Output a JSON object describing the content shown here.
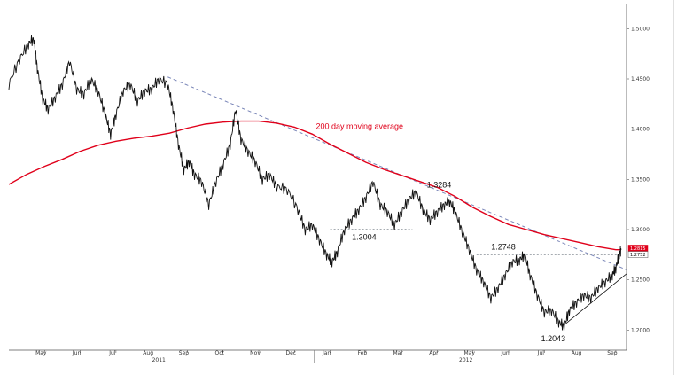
{
  "chart_data": {
    "type": "line",
    "title": "",
    "xlabel": "",
    "ylabel": "",
    "ylim": [
      1.18,
      1.525
    ],
    "y_ticks": [
      {
        "value": 1.5,
        "label": "1.5000"
      },
      {
        "value": 1.45,
        "label": "1.4500"
      },
      {
        "value": 1.4,
        "label": "1.4000"
      },
      {
        "value": 1.35,
        "label": "1.3500"
      },
      {
        "value": 1.3,
        "label": "1.3000"
      },
      {
        "value": 1.25,
        "label": "1.2500"
      },
      {
        "value": 1.2,
        "label": "1.2000"
      }
    ],
    "x_months": [
      {
        "t": 1.0,
        "label": "May"
      },
      {
        "t": 2.0,
        "label": "Jun"
      },
      {
        "t": 3.0,
        "label": "Jul"
      },
      {
        "t": 4.0,
        "label": "Aug"
      },
      {
        "t": 5.0,
        "label": "Sep"
      },
      {
        "t": 6.0,
        "label": "Oct"
      },
      {
        "t": 7.0,
        "label": "Nov"
      },
      {
        "t": 8.0,
        "label": "Dec"
      },
      {
        "t": 9.0,
        "label": "Jan"
      },
      {
        "t": 10.0,
        "label": "Feb"
      },
      {
        "t": 11.0,
        "label": "Mar"
      },
      {
        "t": 12.0,
        "label": "Apr"
      },
      {
        "t": 13.0,
        "label": "May"
      },
      {
        "t": 14.0,
        "label": "Jun"
      },
      {
        "t": 15.0,
        "label": "Jul"
      },
      {
        "t": 16.0,
        "label": "Aug"
      },
      {
        "t": 17.0,
        "label": "Sep"
      }
    ],
    "x_years": [
      {
        "t": 4.2,
        "label": "2011"
      },
      {
        "t": 12.8,
        "label": "2012"
      }
    ],
    "x_range": [
      0.0,
      17.3
    ],
    "price_series": [
      [
        0.0,
        1.445
      ],
      [
        0.3,
        1.47
      ],
      [
        0.55,
        1.485
      ],
      [
        0.7,
        1.49
      ],
      [
        0.8,
        1.46
      ],
      [
        0.95,
        1.43
      ],
      [
        1.1,
        1.42
      ],
      [
        1.3,
        1.432
      ],
      [
        1.5,
        1.445
      ],
      [
        1.7,
        1.468
      ],
      [
        1.9,
        1.44
      ],
      [
        2.1,
        1.435
      ],
      [
        2.3,
        1.45
      ],
      [
        2.5,
        1.438
      ],
      [
        2.7,
        1.415
      ],
      [
        2.85,
        1.395
      ],
      [
        3.0,
        1.415
      ],
      [
        3.2,
        1.438
      ],
      [
        3.4,
        1.445
      ],
      [
        3.6,
        1.428
      ],
      [
        3.8,
        1.438
      ],
      [
        4.0,
        1.44
      ],
      [
        4.2,
        1.45
      ],
      [
        4.45,
        1.445
      ],
      [
        4.6,
        1.42
      ],
      [
        4.75,
        1.385
      ],
      [
        4.9,
        1.36
      ],
      [
        5.05,
        1.368
      ],
      [
        5.2,
        1.355
      ],
      [
        5.4,
        1.348
      ],
      [
        5.6,
        1.325
      ],
      [
        5.8,
        1.348
      ],
      [
        6.0,
        1.365
      ],
      [
        6.2,
        1.385
      ],
      [
        6.35,
        1.42
      ],
      [
        6.5,
        1.39
      ],
      [
        6.7,
        1.378
      ],
      [
        6.9,
        1.368
      ],
      [
        7.1,
        1.35
      ],
      [
        7.3,
        1.355
      ],
      [
        7.5,
        1.343
      ],
      [
        7.8,
        1.34
      ],
      [
        8.1,
        1.32
      ],
      [
        8.3,
        1.3
      ],
      [
        8.5,
        1.305
      ],
      [
        8.7,
        1.29
      ],
      [
        8.9,
        1.275
      ],
      [
        9.05,
        1.268
      ],
      [
        9.2,
        1.278
      ],
      [
        9.4,
        1.3
      ],
      [
        9.6,
        1.31
      ],
      [
        9.8,
        1.32
      ],
      [
        10.0,
        1.332
      ],
      [
        10.2,
        1.348
      ],
      [
        10.4,
        1.325
      ],
      [
        10.6,
        1.318
      ],
      [
        10.8,
        1.305
      ],
      [
        11.0,
        1.318
      ],
      [
        11.2,
        1.33
      ],
      [
        11.4,
        1.338
      ],
      [
        11.6,
        1.32
      ],
      [
        11.8,
        1.31
      ],
      [
        12.0,
        1.318
      ],
      [
        12.2,
        1.325
      ],
      [
        12.35,
        1.328
      ],
      [
        12.5,
        1.318
      ],
      [
        12.7,
        1.298
      ],
      [
        12.9,
        1.28
      ],
      [
        13.1,
        1.26
      ],
      [
        13.3,
        1.248
      ],
      [
        13.5,
        1.232
      ],
      [
        13.7,
        1.242
      ],
      [
        13.9,
        1.255
      ],
      [
        14.1,
        1.268
      ],
      [
        14.3,
        1.27
      ],
      [
        14.45,
        1.275
      ],
      [
        14.6,
        1.255
      ],
      [
        14.8,
        1.235
      ],
      [
        15.0,
        1.218
      ],
      [
        15.2,
        1.22
      ],
      [
        15.4,
        1.208
      ],
      [
        15.55,
        1.204
      ],
      [
        15.7,
        1.22
      ],
      [
        15.9,
        1.228
      ],
      [
        16.1,
        1.235
      ],
      [
        16.3,
        1.232
      ],
      [
        16.5,
        1.242
      ],
      [
        16.7,
        1.248
      ],
      [
        16.9,
        1.255
      ],
      [
        17.0,
        1.262
      ],
      [
        17.1,
        1.276
      ],
      [
        17.15,
        1.28
      ]
    ],
    "ma_series": [
      [
        0.0,
        1.345
      ],
      [
        0.5,
        1.355
      ],
      [
        1.0,
        1.363
      ],
      [
        1.5,
        1.37
      ],
      [
        2.0,
        1.378
      ],
      [
        2.5,
        1.384
      ],
      [
        3.0,
        1.388
      ],
      [
        3.5,
        1.391
      ],
      [
        4.0,
        1.393
      ],
      [
        4.5,
        1.396
      ],
      [
        5.0,
        1.401
      ],
      [
        5.5,
        1.405
      ],
      [
        6.0,
        1.407
      ],
      [
        6.5,
        1.408
      ],
      [
        7.0,
        1.408
      ],
      [
        7.5,
        1.406
      ],
      [
        8.0,
        1.402
      ],
      [
        8.5,
        1.395
      ],
      [
        9.0,
        1.385
      ],
      [
        9.5,
        1.376
      ],
      [
        10.0,
        1.367
      ],
      [
        10.5,
        1.36
      ],
      [
        11.0,
        1.354
      ],
      [
        11.5,
        1.348
      ],
      [
        12.0,
        1.342
      ],
      [
        12.5,
        1.333
      ],
      [
        13.0,
        1.322
      ],
      [
        13.5,
        1.313
      ],
      [
        14.0,
        1.305
      ],
      [
        14.5,
        1.3
      ],
      [
        15.0,
        1.295
      ],
      [
        15.5,
        1.291
      ],
      [
        16.0,
        1.287
      ],
      [
        16.5,
        1.283
      ],
      [
        17.0,
        1.28
      ],
      [
        17.15,
        1.28
      ]
    ],
    "ma_name": "200 day moving average",
    "ma_color": "#e0001a",
    "price_color": "#111111",
    "downtrend_line": [
      [
        4.45,
        1.452
      ],
      [
        17.3,
        1.26
      ]
    ],
    "downtrend_color": "#7a86b8",
    "support_line": [
      [
        15.55,
        1.205
      ],
      [
        17.3,
        1.256
      ]
    ],
    "support_color": "#111111",
    "levels": [
      {
        "t0": 9.0,
        "t1": 11.3,
        "value": 1.3004
      },
      {
        "t0": 13.1,
        "t1": 17.15,
        "value": 1.2748
      }
    ],
    "level_color": "#9aa0a6",
    "annotations": [
      {
        "t": 9.95,
        "value": 1.29,
        "label": "1.3004"
      },
      {
        "t": 12.05,
        "value": 1.342,
        "label": "1.3284"
      },
      {
        "t": 13.85,
        "value": 1.28,
        "label": "1.2748"
      },
      {
        "t": 15.25,
        "value": 1.189,
        "label": "1.2043"
      }
    ],
    "ma_label_pos": {
      "t": 8.6,
      "value": 1.4
    },
    "current_badges": [
      {
        "value": 1.2815,
        "label": "1.2815",
        "color": "#e0001a"
      },
      {
        "value": 1.2752,
        "label": "1.2752",
        "color": "#ffffff"
      }
    ]
  }
}
